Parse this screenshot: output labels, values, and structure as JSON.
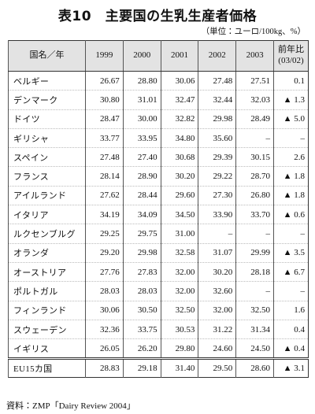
{
  "header": {
    "title": "表10　主要国の生乳生産者価格",
    "unit": "（単位：ユーロ/100kg、%）"
  },
  "table": {
    "columns": [
      "国名／年",
      "1999",
      "2000",
      "2001",
      "2002",
      "2003"
    ],
    "change_column": [
      "前年比",
      "(03/02)"
    ],
    "rows": [
      [
        "ベルギー",
        "26.67",
        "28.80",
        "30.06",
        "27.48",
        "27.51",
        "0.1"
      ],
      [
        "デンマーク",
        "30.80",
        "31.01",
        "32.47",
        "32.44",
        "32.03",
        "▲ 1.3"
      ],
      [
        "ドイツ",
        "28.47",
        "30.00",
        "32.82",
        "29.98",
        "28.49",
        "▲ 5.0"
      ],
      [
        "ギリシャ",
        "33.77",
        "33.95",
        "34.80",
        "35.60",
        "–",
        "–"
      ],
      [
        "スペイン",
        "27.48",
        "27.40",
        "30.68",
        "29.39",
        "30.15",
        "2.6"
      ],
      [
        "フランス",
        "28.14",
        "28.90",
        "30.20",
        "29.22",
        "28.70",
        "▲ 1.8"
      ],
      [
        "アイルランド",
        "27.62",
        "28.44",
        "29.60",
        "27.30",
        "26.80",
        "▲ 1.8"
      ],
      [
        "イタリア",
        "34.19",
        "34.09",
        "34.50",
        "33.90",
        "33.70",
        "▲ 0.6"
      ],
      [
        "ルクセンブルグ",
        "29.25",
        "29.75",
        "31.00",
        "–",
        "–",
        "–"
      ],
      [
        "オランダ",
        "29.20",
        "29.98",
        "32.58",
        "31.07",
        "29.99",
        "▲ 3.5"
      ],
      [
        "オーストリア",
        "27.76",
        "27.83",
        "32.00",
        "30.20",
        "28.18",
        "▲ 6.7"
      ],
      [
        "ポルトガル",
        "28.03",
        "28.03",
        "32.00",
        "32.60",
        "–",
        "–"
      ],
      [
        "フィンランド",
        "30.06",
        "30.50",
        "32.50",
        "32.00",
        "32.50",
        "1.6"
      ],
      [
        "スウェーデン",
        "32.36",
        "33.75",
        "30.53",
        "31.22",
        "31.34",
        "0.4"
      ],
      [
        "イギリス",
        "26.05",
        "26.20",
        "29.80",
        "24.60",
        "24.50",
        "▲ 0.4"
      ]
    ],
    "total": [
      "EU15カ国",
      "28.83",
      "29.18",
      "31.40",
      "29.50",
      "28.60",
      "▲ 3.1"
    ]
  },
  "footer": {
    "source": "資料：ZMP「Dairy Review 2004」"
  }
}
